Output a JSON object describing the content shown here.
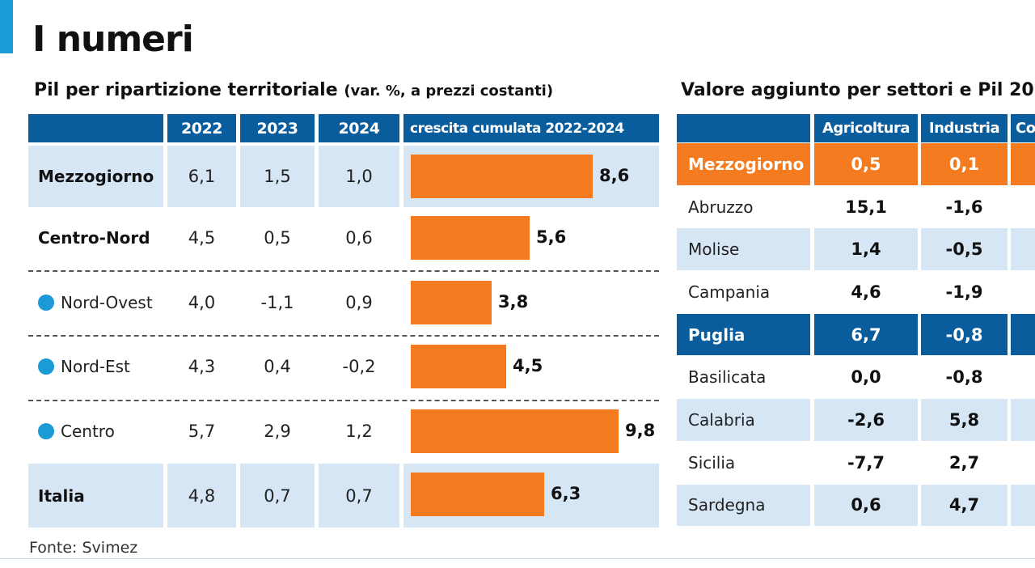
{
  "header": {
    "title": "I numeri"
  },
  "left_chart": {
    "title": "Pil per ripartizione territoriale",
    "title_note": "(var. %, a prezzi costanti)",
    "columns": [
      "2022",
      "2023",
      "2024",
      "crescita cumulata 2022-2024"
    ]
  },
  "right_table": {
    "title": "Valore aggiunto per settori e Pil 20",
    "columns": [
      "Agricoltura",
      "Industria",
      "Co"
    ],
    "rows": [
      {
        "region": "Mezzogiorno",
        "agricoltura": "0,5",
        "industria": "0,1"
      },
      {
        "region": "Abruzzo",
        "agricoltura": "15,1",
        "industria": "-1,6"
      },
      {
        "region": "Molise",
        "agricoltura": "1,4",
        "industria": "-0,5"
      },
      {
        "region": "Campania",
        "agricoltura": "4,6",
        "industria": "-1,9"
      },
      {
        "region": "Puglia",
        "agricoltura": "6,7",
        "industria": "-0,8"
      },
      {
        "region": "Basilicata",
        "agricoltura": "0,0",
        "industria": "-0,8"
      },
      {
        "region": "Calabria",
        "agricoltura": "-2,6",
        "industria": "5,8"
      },
      {
        "region": "Sicilia",
        "agricoltura": "-7,7",
        "industria": "2,7"
      },
      {
        "region": "Sardegna",
        "agricoltura": "0,6",
        "industria": "4,7"
      }
    ]
  },
  "footer": {
    "source": "Fonte: Svimez"
  },
  "colors": {
    "header_blue": "#0a5d9c",
    "accent_blue": "#1a9ad6",
    "bar_orange": "#f47b20",
    "row_shade": "#d6e6f5"
  },
  "chart_data": {
    "type": "table",
    "title": "Pil per ripartizione territoriale (var. %, a prezzi costanti)",
    "categories": [
      "Mezzogiorno",
      "Centro-Nord",
      "Nord-Ovest",
      "Nord-Est",
      "Centro",
      "Italia"
    ],
    "series": [
      {
        "name": "2022",
        "values": [
          6.1,
          4.5,
          4.0,
          4.3,
          5.7,
          4.8
        ]
      },
      {
        "name": "2023",
        "values": [
          1.5,
          0.5,
          -1.1,
          0.4,
          2.9,
          0.7
        ]
      },
      {
        "name": "2024",
        "values": [
          1.0,
          0.6,
          0.9,
          -0.2,
          1.2,
          0.7
        ]
      },
      {
        "name": "crescita cumulata 2022-2024",
        "values": [
          8.6,
          5.6,
          3.8,
          4.5,
          9.8,
          6.3
        ]
      }
    ],
    "display": {
      "2022": [
        "6,1",
        "4,5",
        "4,0",
        "4,3",
        "5,7",
        "4,8"
      ],
      "2023": [
        "1,5",
        "0,5",
        "-1,1",
        "0,4",
        "2,9",
        "0,7"
      ],
      "2024": [
        "1,0",
        "0,6",
        "0,9",
        "-0,2",
        "1,2",
        "0,7"
      ],
      "cumulata": [
        "8,6",
        "5,6",
        "3,8",
        "4,5",
        "9,8",
        "6,3"
      ]
    },
    "bar_axis_max": 10.0
  }
}
